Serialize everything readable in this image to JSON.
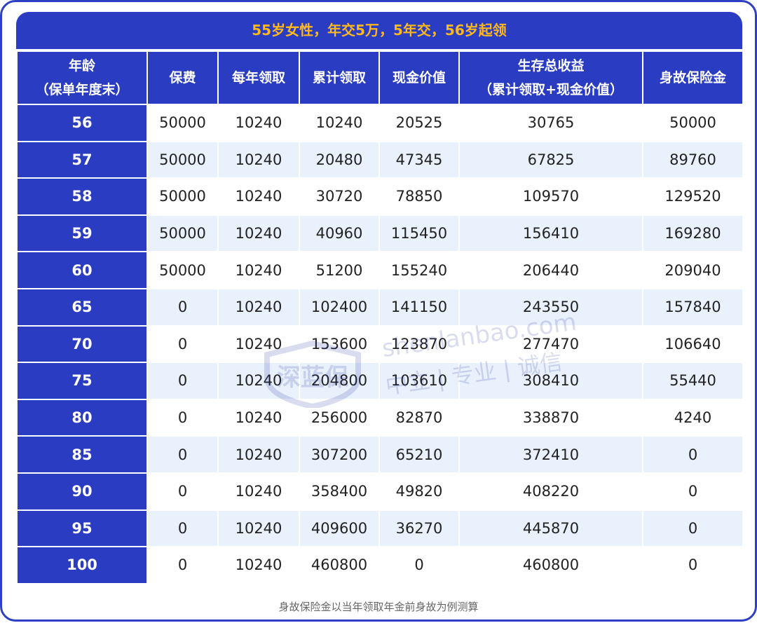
{
  "title": "55岁女性，年交5万，5年交，56岁起领",
  "headers": [
    {
      "line1": "年龄",
      "line2": "（保单年度末）"
    },
    {
      "line1": "保费",
      "line2": ""
    },
    {
      "line1": "每年领取",
      "line2": ""
    },
    {
      "line1": "累计领取",
      "line2": ""
    },
    {
      "line1": "现金价值",
      "line2": ""
    },
    {
      "line1": "生存总收益",
      "line2": "（累计领取+现金价值）"
    },
    {
      "line1": "身故保险金",
      "line2": ""
    }
  ],
  "rows": [
    [
      "56",
      "50000",
      "10240",
      "10240",
      "20525",
      "30765",
      "50000"
    ],
    [
      "57",
      "50000",
      "10240",
      "20480",
      "47345",
      "67825",
      "89760"
    ],
    [
      "58",
      "50000",
      "10240",
      "30720",
      "78850",
      "109570",
      "129520"
    ],
    [
      "59",
      "50000",
      "10240",
      "40960",
      "115450",
      "156410",
      "169280"
    ],
    [
      "60",
      "50000",
      "10240",
      "51200",
      "155240",
      "206440",
      "209040"
    ],
    [
      "65",
      "0",
      "10240",
      "102400",
      "141150",
      "243550",
      "157840"
    ],
    [
      "70",
      "0",
      "10240",
      "153600",
      "123870",
      "277470",
      "106640"
    ],
    [
      "75",
      "0",
      "10240",
      "204800",
      "103610",
      "308410",
      "55440"
    ],
    [
      "80",
      "0",
      "10240",
      "256000",
      "82870",
      "338870",
      "4240"
    ],
    [
      "85",
      "0",
      "10240",
      "307200",
      "65210",
      "372410",
      "0"
    ],
    [
      "90",
      "0",
      "10240",
      "358400",
      "49820",
      "408220",
      "0"
    ],
    [
      "95",
      "0",
      "10240",
      "409600",
      "36270",
      "445870",
      "0"
    ],
    [
      "100",
      "0",
      "10240",
      "460800",
      "0",
      "460800",
      "0"
    ]
  ],
  "watermark": {
    "brand": "深蓝保",
    "url": "shenlanbao.com",
    "slogan": "中立 | 专业 | 诚信"
  },
  "footnote": "身故保险金以当年领取年金前身故为例测算",
  "colors": {
    "header_bg": "#2a3cc2",
    "title_text": "#ffb81c",
    "stripe": "#e8f1fc"
  }
}
